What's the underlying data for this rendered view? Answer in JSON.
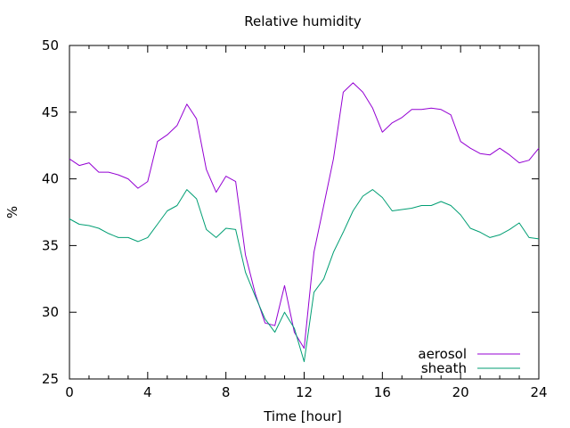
{
  "chart_data": {
    "type": "line",
    "title": "Relative humidity",
    "xlabel": "Time [hour]",
    "ylabel": "%",
    "xlim": [
      0,
      24
    ],
    "ylim": [
      25,
      50
    ],
    "xticks": [
      0,
      4,
      8,
      12,
      16,
      20,
      24
    ],
    "yticks": [
      25,
      30,
      35,
      40,
      45,
      50
    ],
    "xtick_labels": [
      "0",
      "4",
      "8",
      "12",
      "16",
      "20",
      "24"
    ],
    "ytick_labels": [
      "25",
      "30",
      "35",
      "40",
      "45",
      "50"
    ],
    "grid": false,
    "legend_position": "bottom-right",
    "series": [
      {
        "name": "aerosol",
        "color": "#9400d3",
        "x": [
          0,
          0.5,
          1,
          1.5,
          2,
          2.5,
          3,
          3.5,
          4,
          4.5,
          5,
          5.5,
          6,
          6.5,
          7,
          7.5,
          8,
          8.5,
          9,
          9.5,
          10,
          10.5,
          11,
          11.5,
          12,
          12.5,
          13,
          13.5,
          14,
          14.5,
          15,
          15.5,
          16,
          16.5,
          17,
          17.5,
          18,
          18.5,
          19,
          19.5,
          20,
          20.5,
          21,
          21.5,
          22,
          22.5,
          23,
          23.5,
          24
        ],
        "y": [
          41.5,
          41,
          41.2,
          40.5,
          40.5,
          40.3,
          40,
          39.3,
          39.8,
          42.8,
          43.3,
          44,
          45.6,
          44.5,
          40.7,
          39,
          40.2,
          39.8,
          34.3,
          31.4,
          29.2,
          29,
          32,
          28.5,
          27.3,
          34.5,
          38,
          41.5,
          46.5,
          47.2,
          46.5,
          45.3,
          43.5,
          44.2,
          44.6,
          45.2,
          45.2,
          45.3,
          45.2,
          44.8,
          42.8,
          42.3,
          41.9,
          41.8,
          42.3,
          41.8,
          41.2,
          41.4,
          42.3
        ]
      },
      {
        "name": "sheath",
        "color": "#009e73",
        "x": [
          0,
          0.5,
          1,
          1.5,
          2,
          2.5,
          3,
          3.5,
          4,
          4.5,
          5,
          5.5,
          6,
          6.5,
          7,
          7.5,
          8,
          8.5,
          9,
          9.5,
          10,
          10.5,
          11,
          11.5,
          12,
          12.5,
          13,
          13.5,
          14,
          14.5,
          15,
          15.5,
          16,
          16.5,
          17,
          17.5,
          18,
          18.5,
          19,
          19.5,
          20,
          20.5,
          21,
          21.5,
          22,
          22.5,
          23,
          23.5,
          24
        ],
        "y": [
          37,
          36.6,
          36.5,
          36.3,
          35.9,
          35.6,
          35.6,
          35.3,
          35.6,
          36.6,
          37.6,
          38,
          39.2,
          38.5,
          36.2,
          35.6,
          36.3,
          36.2,
          33,
          31.2,
          29.5,
          28.5,
          30,
          28.8,
          26.3,
          31.5,
          32.5,
          34.5,
          36,
          37.6,
          38.7,
          39.2,
          38.6,
          37.6,
          37.7,
          37.8,
          38,
          38,
          38.3,
          38,
          37.3,
          36.3,
          36,
          35.6,
          35.8,
          36.2,
          36.7,
          35.6,
          35.5
        ]
      }
    ]
  }
}
